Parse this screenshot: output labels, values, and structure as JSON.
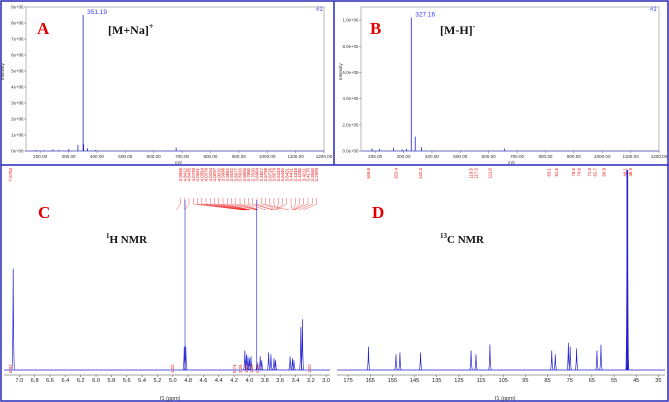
{
  "panels": {
    "A": {
      "letter": "A",
      "ion": "[M+Na]",
      "ion_sup": "+",
      "peak_label": "351.19",
      "file_tag": "#1"
    },
    "B": {
      "letter": "B",
      "ion": "[M-H]",
      "ion_sup": "-",
      "peak_label": "327.16",
      "file_tag": "#1"
    },
    "C": {
      "letter": "C",
      "nmr_title": "H NMR",
      "nmr_sup": "1"
    },
    "D": {
      "letter": "D",
      "nmr_title": "C NMR",
      "nmr_sup": "13"
    }
  },
  "colors": {
    "frame": "#2a2ab8",
    "spectrum": "#2020d0",
    "label_red": "#ee1111",
    "letter_red": "#e00000",
    "peak_blue": "#3a3aff"
  },
  "chart_data": [
    {
      "type": "line",
      "panel": "A",
      "xlabel": "m/z",
      "ylabel": "Intensity",
      "xlim": [
        150,
        1200
      ],
      "ylim": [
        0,
        9000000
      ],
      "x_ticks": [
        "200.00",
        "300.00",
        "400.00",
        "500.00",
        "600.00",
        "700.00",
        "800.00",
        "900.00",
        "1000.00",
        "1100.00",
        "1200.00"
      ],
      "y_ticks": [
        "0e+00",
        "1e+06",
        "2e+06",
        "3e+06",
        "4e+06",
        "5e+06",
        "6e+06",
        "7e+06",
        "8e+06",
        "9e+06"
      ],
      "peaks": [
        [
          185,
          60000
        ],
        [
          213,
          50000
        ],
        [
          245,
          90000
        ],
        [
          265,
          60000
        ],
        [
          301,
          120000
        ],
        [
          333,
          380000
        ],
        [
          351.19,
          8500000
        ],
        [
          353,
          420000
        ],
        [
          367,
          180000
        ],
        [
          395,
          60000
        ],
        [
          405,
          35000
        ],
        [
          650,
          30000
        ],
        [
          679,
          210000
        ],
        [
          695,
          40000
        ]
      ]
    },
    {
      "type": "line",
      "panel": "B",
      "xlabel": "m/z",
      "ylabel": "Intensity",
      "xlim": [
        150,
        1200
      ],
      "ylim": [
        0,
        1100000
      ],
      "x_ticks": [
        "200.00",
        "300.00",
        "400.00",
        "500.00",
        "600.00",
        "700.00",
        "800.00",
        "900.00",
        "1000.00",
        "1100.00",
        "1200.00"
      ],
      "y_ticks": [
        "0.0e+00",
        "2.0e+05",
        "4.0e+05",
        "6.0e+05",
        "8.0e+05",
        "1.0e+06"
      ],
      "peaks": [
        [
          189,
          20000
        ],
        [
          215,
          15000
        ],
        [
          265,
          25000
        ],
        [
          295,
          12000
        ],
        [
          311,
          18000
        ],
        [
          327.16,
          1020000
        ],
        [
          341,
          110000
        ],
        [
          363,
          30000
        ],
        [
          655,
          20000
        ]
      ]
    },
    {
      "type": "line",
      "panel": "C",
      "xlabel": "f1 (ppm)",
      "xlim": [
        7.2,
        2.95
      ],
      "x_ticks": [
        "7.0",
        "6.8",
        "6.6",
        "6.4",
        "6.2",
        "6.0",
        "5.8",
        "5.6",
        "5.4",
        "5.2",
        "5.0",
        "4.8",
        "4.6",
        "4.4",
        "4.2",
        "4.0",
        "3.8",
        "3.6",
        "3.4",
        "3.2",
        "3.0"
      ],
      "shift_labels": [
        "7.6784",
        "4.9568",
        "4.8412",
        "4.8435",
        "4.0799",
        "4.0651",
        "4.0554",
        "4.0378",
        "4.0294",
        "4.0097",
        "4.0032",
        "3.9998",
        "3.9882",
        "3.9162",
        "3.8977",
        "3.8916",
        "3.8806",
        "3.7880",
        "3.7020",
        "3.6964",
        "3.4827",
        "3.6798",
        "3.6725",
        "3.6579",
        "3.6449",
        "3.6440",
        "3.6421",
        "3.4431",
        "3.4348",
        "3.4250",
        "3.4211",
        "3.4170",
        "3.3560",
        "3.2999"
      ],
      "integrals": [
        "0.91",
        "1.02",
        "0.74",
        "2.26",
        "1.27",
        "1.04",
        "2.06",
        "1.02"
      ],
      "peaks": [
        [
          7.08,
          0.52
        ],
        [
          4.85,
          0.12
        ],
        [
          4.83,
          0.12
        ],
        [
          4.06,
          0.1
        ],
        [
          4.04,
          0.08
        ],
        [
          4.02,
          0.07
        ],
        [
          4.0,
          0.06
        ],
        [
          3.98,
          0.07
        ],
        [
          3.9,
          0.04
        ],
        [
          3.86,
          0.07
        ],
        [
          3.84,
          0.05
        ],
        [
          3.75,
          0.09
        ],
        [
          3.72,
          0.08
        ],
        [
          3.68,
          0.06
        ],
        [
          3.66,
          0.05
        ],
        [
          3.47,
          0.07
        ],
        [
          3.44,
          0.06
        ],
        [
          3.42,
          0.05
        ],
        [
          3.33,
          0.22
        ],
        [
          3.31,
          0.26
        ]
      ]
    },
    {
      "type": "line",
      "panel": "D",
      "xlabel": "f1 (ppm)",
      "xlim": [
        180,
        32
      ],
      "x_ticks": [
        "175",
        "165",
        "155",
        "145",
        "135",
        "125",
        "115",
        "105",
        "95",
        "85",
        "75",
        "65",
        "55",
        "45",
        "35"
      ],
      "shift_labels": [
        "165.8",
        "153.4",
        "142.3",
        "119.5",
        "117.3",
        "111.0",
        "83.1",
        "81.5",
        "75.6",
        "74.8",
        "71.9",
        "62.7",
        "60.9",
        "49.1",
        "48.9"
      ],
      "peaks": [
        [
          165.8,
          0.12
        ],
        [
          153.4,
          0.08
        ],
        [
          151.6,
          0.09
        ],
        [
          142.3,
          0.09
        ],
        [
          119.5,
          0.1
        ],
        [
          117.3,
          0.08
        ],
        [
          111.0,
          0.13
        ],
        [
          83.1,
          0.1
        ],
        [
          81.5,
          0.08
        ],
        [
          75.6,
          0.14
        ],
        [
          74.8,
          0.12
        ],
        [
          71.9,
          0.11
        ],
        [
          62.7,
          0.1
        ],
        [
          60.9,
          0.13
        ],
        [
          49.1,
          1.0
        ],
        [
          48.9,
          0.9
        ]
      ]
    }
  ]
}
